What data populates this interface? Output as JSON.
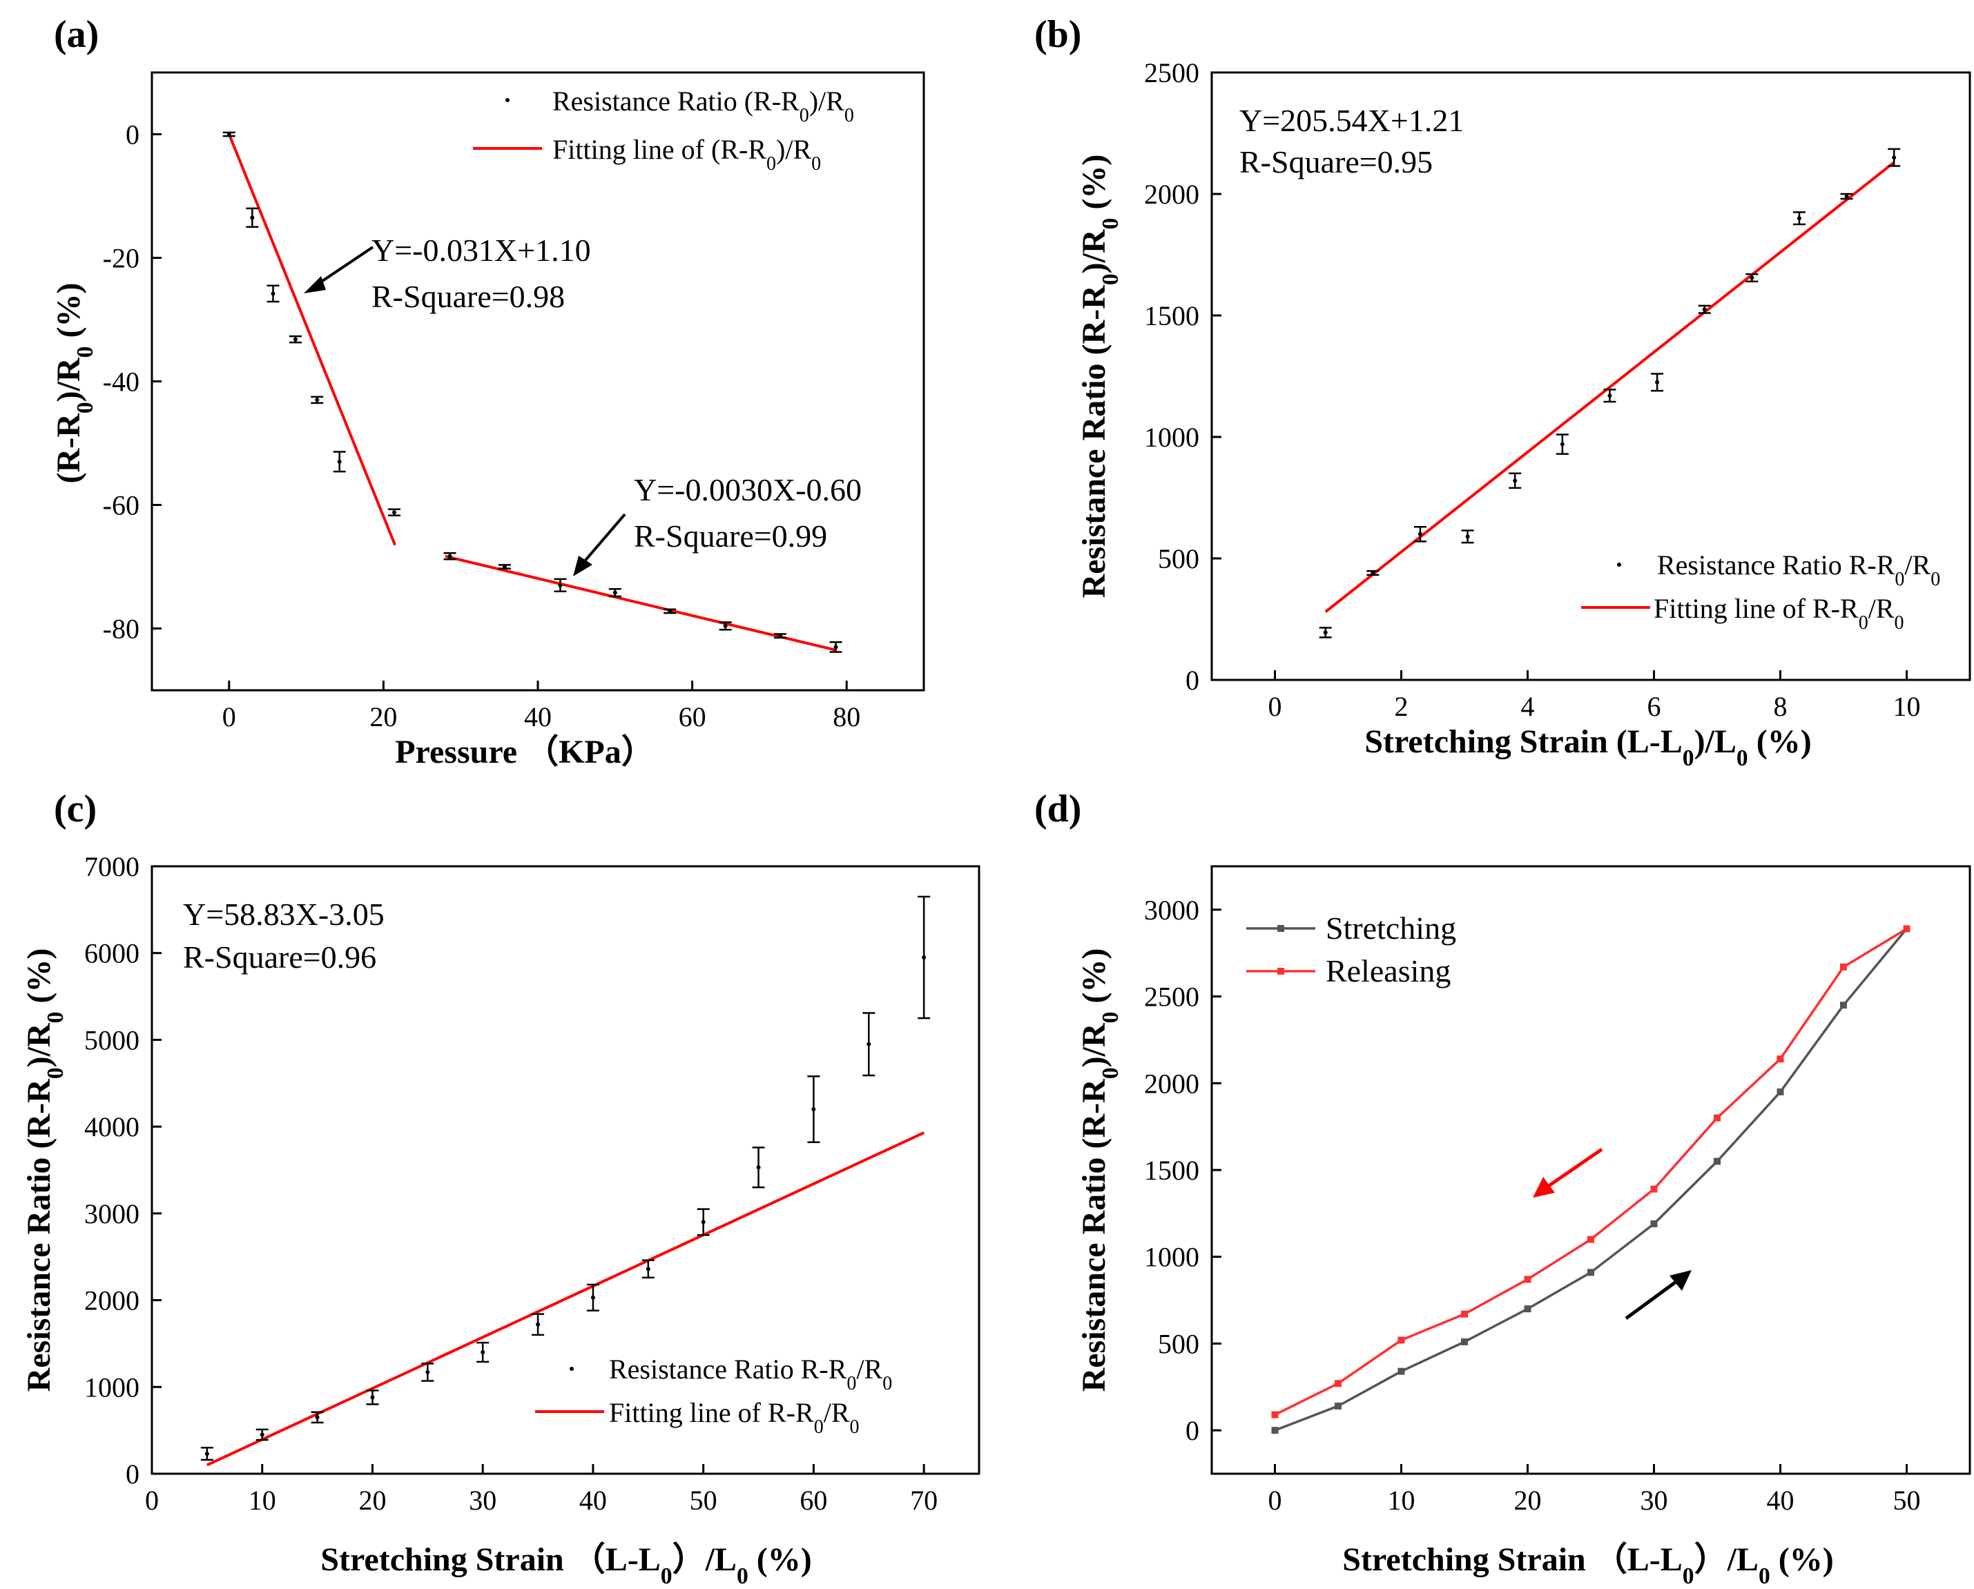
{
  "panels": [
    {
      "id": "a",
      "label": "(a)",
      "xlabel": "Pressure （KPa）",
      "ylabel": "(R-R0)/R0 (%)",
      "legend": {
        "data": "Resistance Ratio (R-R0)/R0",
        "fit": "Fitting line of (R-R0)/R0"
      },
      "annotations": [
        {
          "eq": "Y=-0.031X+1.10",
          "r2": "R-Square=0.98"
        },
        {
          "eq": "Y=-0.0030X-0.60",
          "r2": "R-Square=0.99"
        }
      ]
    },
    {
      "id": "b",
      "label": "(b)",
      "xlabel": "Stretching Strain (L-L0)/L0 (%)",
      "ylabel": "Resistance Ratio (R-R0)/R0 (%)",
      "legend": {
        "data": "Resistance Ratio R-R0/R0",
        "fit": "Fitting line of R-R0/R0"
      },
      "annotations": [
        {
          "eq": "Y=205.54X+1.21",
          "r2": "R-Square=0.95"
        }
      ]
    },
    {
      "id": "c",
      "label": "(c)",
      "xlabel": "Stretching Strain （L-L0）/L0 (%)",
      "ylabel": "Resistance Ratio (R-R0)/R0 (%)",
      "legend": {
        "data": "Resistance Ratio R-R0/R0",
        "fit": "Fitting line of R-R0/R0"
      },
      "annotations": [
        {
          "eq": "Y=58.83X-3.05",
          "r2": "R-Square=0.96"
        }
      ]
    },
    {
      "id": "d",
      "label": "(d)",
      "xlabel": "Stretching Strain （L-L0）/L0 (%)",
      "ylabel": "Resistance Ratio (R-R0)/R0 (%)",
      "legend": {
        "stretch": "Stretching",
        "release": "Releasing"
      },
      "annotations": []
    }
  ],
  "colors": {
    "fit": "#ff0000",
    "data": "#000000",
    "stretching": "#555555",
    "releasing": "#ff3030",
    "arrow_release": "#ff0000",
    "arrow_stretch": "#000000"
  },
  "chart_data": [
    {
      "type": "scatter",
      "panel": "a",
      "xlim": [
        -10,
        90
      ],
      "ylim": [
        -90,
        10
      ],
      "xticks": [
        0,
        20,
        40,
        60,
        80
      ],
      "yticks": [
        0,
        -20,
        -40,
        -60,
        -80
      ],
      "points": [
        {
          "x": 0,
          "y": 0,
          "err": 0.3
        },
        {
          "x": 3,
          "y": -13.5,
          "err": 1.5
        },
        {
          "x": 5.7,
          "y": -25.8,
          "err": 1.3
        },
        {
          "x": 8.6,
          "y": -33.2,
          "err": 0.5
        },
        {
          "x": 11.4,
          "y": -43,
          "err": 0.5
        },
        {
          "x": 14.3,
          "y": -53,
          "err": 1.6
        },
        {
          "x": 21.4,
          "y": -61.2,
          "err": 0.5
        },
        {
          "x": 28.6,
          "y": -68.3,
          "err": 0.5
        },
        {
          "x": 35.7,
          "y": -70,
          "err": 0.3
        },
        {
          "x": 42.9,
          "y": -73,
          "err": 1.0
        },
        {
          "x": 50,
          "y": -74.2,
          "err": 0.6
        },
        {
          "x": 57.1,
          "y": -77.2,
          "err": 0.3
        },
        {
          "x": 64.3,
          "y": -79.6,
          "err": 0.6
        },
        {
          "x": 71.4,
          "y": -81.2,
          "err": 0.3
        },
        {
          "x": 78.6,
          "y": -83,
          "err": 0.8
        }
      ],
      "fits": [
        {
          "x": [
            0,
            21.5
          ],
          "y": [
            0,
            -66.5
          ]
        },
        {
          "x": [
            28,
            78.6
          ],
          "y": [
            -68.3,
            -83.5
          ]
        }
      ]
    },
    {
      "type": "scatter",
      "panel": "b",
      "xlim": [
        -1,
        11
      ],
      "ylim": [
        0,
        2500
      ],
      "xticks": [
        0,
        2,
        4,
        6,
        8,
        10
      ],
      "yticks": [
        0,
        500,
        1000,
        1500,
        2000,
        2500
      ],
      "points": [
        {
          "x": 0.8,
          "y": 195,
          "err": 20
        },
        {
          "x": 1.55,
          "y": 440,
          "err": 8
        },
        {
          "x": 2.3,
          "y": 600,
          "err": 30
        },
        {
          "x": 3.05,
          "y": 590,
          "err": 25
        },
        {
          "x": 3.8,
          "y": 820,
          "err": 30
        },
        {
          "x": 4.55,
          "y": 970,
          "err": 40
        },
        {
          "x": 5.3,
          "y": 1170,
          "err": 25
        },
        {
          "x": 6.05,
          "y": 1225,
          "err": 35
        },
        {
          "x": 6.8,
          "y": 1525,
          "err": 15
        },
        {
          "x": 7.55,
          "y": 1655,
          "err": 15
        },
        {
          "x": 8.3,
          "y": 1900,
          "err": 25
        },
        {
          "x": 9.05,
          "y": 1990,
          "err": 10
        },
        {
          "x": 9.8,
          "y": 2150,
          "err": 35
        }
      ],
      "fits": [
        {
          "x": [
            0.8,
            9.8
          ],
          "y": [
            280,
            2130
          ]
        }
      ]
    },
    {
      "type": "scatter",
      "panel": "c",
      "xlim": [
        0,
        75
      ],
      "ylim": [
        0,
        7000
      ],
      "xticks": [
        0,
        10,
        20,
        30,
        40,
        50,
        60,
        70
      ],
      "yticks": [
        0,
        1000,
        2000,
        3000,
        4000,
        5000,
        6000,
        7000
      ],
      "points": [
        {
          "x": 5,
          "y": 230,
          "err": 70
        },
        {
          "x": 10,
          "y": 450,
          "err": 60
        },
        {
          "x": 15,
          "y": 650,
          "err": 60
        },
        {
          "x": 20,
          "y": 880,
          "err": 80
        },
        {
          "x": 25,
          "y": 1170,
          "err": 100
        },
        {
          "x": 30,
          "y": 1400,
          "err": 110
        },
        {
          "x": 35,
          "y": 1720,
          "err": 120
        },
        {
          "x": 40,
          "y": 2030,
          "err": 150
        },
        {
          "x": 45,
          "y": 2360,
          "err": 100
        },
        {
          "x": 50,
          "y": 2900,
          "err": 150
        },
        {
          "x": 55,
          "y": 3530,
          "err": 230
        },
        {
          "x": 60,
          "y": 4200,
          "err": 380
        },
        {
          "x": 65,
          "y": 4950,
          "err": 360
        },
        {
          "x": 70,
          "y": 5950,
          "err": 700
        }
      ],
      "fits": [
        {
          "x": [
            5,
            70
          ],
          "y": [
            100,
            3930
          ]
        }
      ]
    },
    {
      "type": "line",
      "panel": "d",
      "xlim": [
        -5,
        55
      ],
      "ylim": [
        -250,
        3250
      ],
      "xticks": [
        0,
        10,
        20,
        30,
        40,
        50
      ],
      "yticks": [
        0,
        500,
        1000,
        1500,
        2000,
        2500,
        3000
      ],
      "x": [
        0,
        5,
        10,
        15,
        20,
        25,
        30,
        35,
        40,
        45,
        50
      ],
      "series": [
        {
          "name": "Stretching",
          "values": [
            0,
            140,
            340,
            510,
            700,
            910,
            1190,
            1550,
            1950,
            2450,
            2890
          ]
        },
        {
          "name": "Releasing",
          "values": [
            90,
            270,
            520,
            670,
            870,
            1100,
            1390,
            1800,
            2140,
            2670,
            2890
          ]
        }
      ]
    }
  ]
}
